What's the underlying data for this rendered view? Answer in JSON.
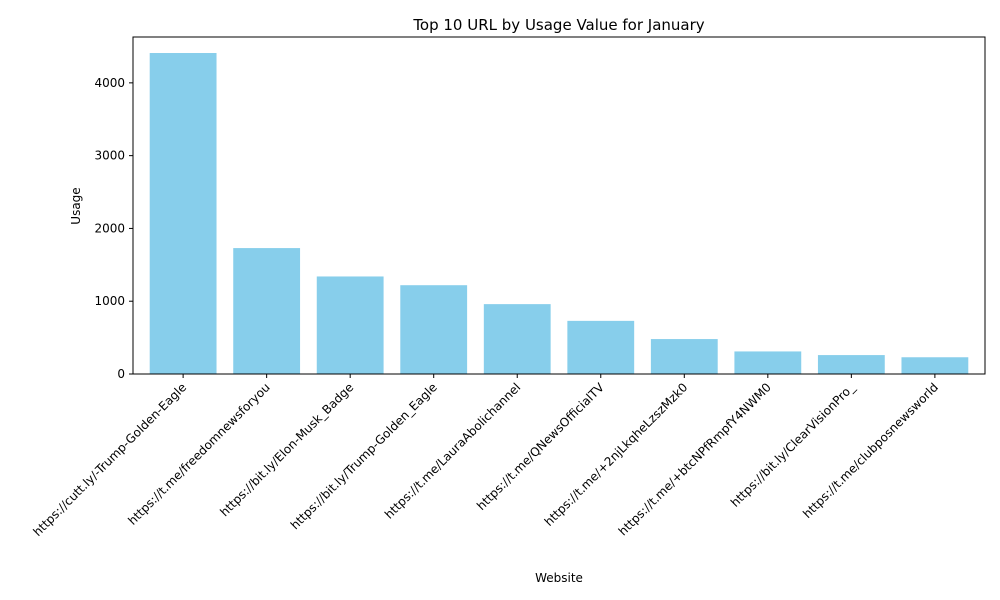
{
  "chart_data": {
    "type": "bar",
    "title": "Top 10 URL by Usage Value for January",
    "xlabel": "Website",
    "ylabel": "Usage",
    "categories": [
      "https://cutt.ly/-Trump-Golden-Eagle",
      "https://t.me/freedomnewsforyou",
      "https://bit.ly/Elon-Musk_Badge",
      "https://bit.ly/Trump-Golden_Eagle",
      "https://t.me/LauraAbolichannel",
      "https://t.me/QNewsOfficialTV",
      "https://t.me/+2njLkqheLzszMzk0",
      "https://t.me/+btcNPfRmpfY4NWM0",
      "https://bit.ly/ClearVisionPro_",
      "https://t.me/clubposnewsworld"
    ],
    "values": [
      4410,
      1730,
      1340,
      1220,
      960,
      730,
      480,
      310,
      260,
      230
    ],
    "ylim": [
      0,
      4630
    ],
    "yticks": [
      0,
      1000,
      2000,
      3000,
      4000
    ],
    "bar_color": "#87CEEB",
    "grid": false,
    "legend": "none"
  }
}
